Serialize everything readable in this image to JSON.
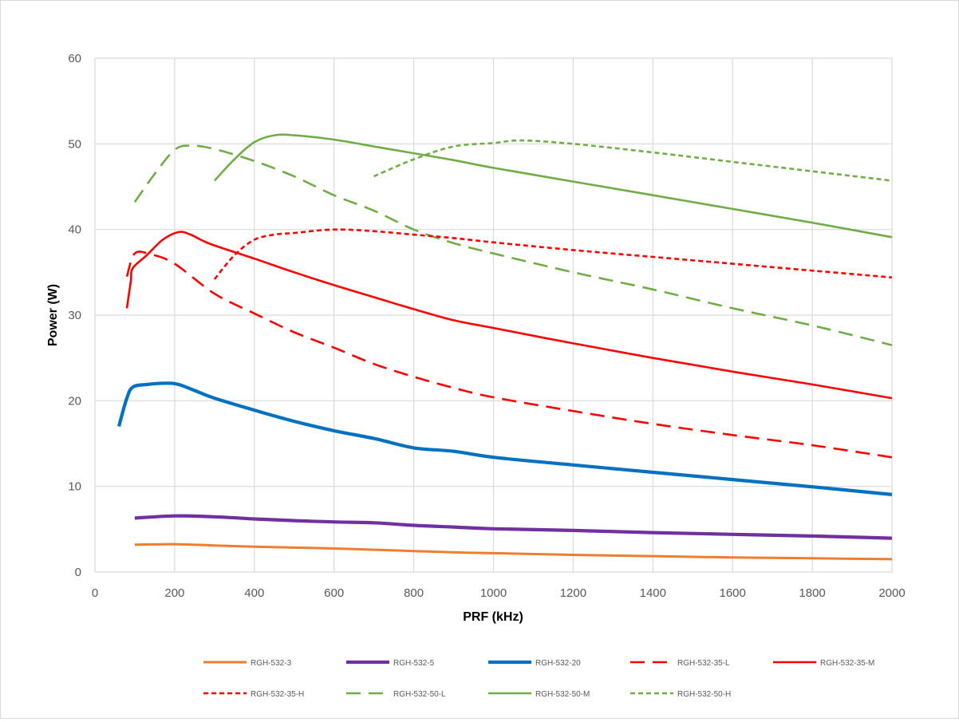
{
  "chart_data": {
    "type": "line",
    "title": "",
    "xlabel": "PRF (kHz)",
    "ylabel": "Power (W)",
    "xlim": [
      0,
      2000
    ],
    "ylim": [
      0,
      60
    ],
    "xticks": [
      0,
      200,
      400,
      600,
      800,
      1000,
      1200,
      1400,
      1600,
      1800,
      2000
    ],
    "yticks": [
      0,
      10,
      20,
      30,
      40,
      50,
      60
    ],
    "grid": "vertical and horizontal",
    "legend_position": "bottom",
    "series": [
      {
        "name": "RGH-532-3",
        "color": "#ED7D31",
        "style": "solid",
        "width": "thin",
        "points": [
          [
            100,
            3.2
          ],
          [
            200,
            3.25
          ],
          [
            300,
            3.1
          ],
          [
            400,
            2.95
          ],
          [
            500,
            2.85
          ],
          [
            600,
            2.75
          ],
          [
            700,
            2.6
          ],
          [
            800,
            2.45
          ],
          [
            900,
            2.3
          ],
          [
            1000,
            2.2
          ],
          [
            1200,
            2.0
          ],
          [
            1400,
            1.85
          ],
          [
            1600,
            1.7
          ],
          [
            1800,
            1.6
          ],
          [
            2000,
            1.5
          ]
        ]
      },
      {
        "name": "RGH-532-5",
        "color": "#7030A0",
        "style": "solid",
        "width": "thick",
        "points": [
          [
            100,
            6.3
          ],
          [
            200,
            6.55
          ],
          [
            300,
            6.45
          ],
          [
            400,
            6.2
          ],
          [
            500,
            6.0
          ],
          [
            600,
            5.85
          ],
          [
            700,
            5.75
          ],
          [
            800,
            5.45
          ],
          [
            900,
            5.25
          ],
          [
            1000,
            5.05
          ],
          [
            1200,
            4.85
          ],
          [
            1400,
            4.6
          ],
          [
            1600,
            4.4
          ],
          [
            1800,
            4.2
          ],
          [
            2000,
            3.95
          ]
        ]
      },
      {
        "name": "RGH-532-20",
        "color": "#0070C0",
        "style": "solid",
        "width": "thick",
        "points": [
          [
            60,
            17
          ],
          [
            80,
            20.3
          ],
          [
            95,
            21.6
          ],
          [
            130,
            21.9
          ],
          [
            180,
            22.05
          ],
          [
            210,
            21.9
          ],
          [
            250,
            21.2
          ],
          [
            300,
            20.3
          ],
          [
            400,
            18.9
          ],
          [
            500,
            17.6
          ],
          [
            600,
            16.5
          ],
          [
            700,
            15.6
          ],
          [
            800,
            14.5
          ],
          [
            900,
            14.1
          ],
          [
            1000,
            13.4
          ],
          [
            1200,
            12.5
          ],
          [
            1400,
            11.65
          ],
          [
            1600,
            10.8
          ],
          [
            1800,
            9.95
          ],
          [
            2000,
            9.05
          ]
        ]
      },
      {
        "name": "RGH-532-35-L",
        "color": "#FF0000",
        "style": "dash-long",
        "width": "medium",
        "points": [
          [
            80,
            34.5
          ],
          [
            100,
            37.2
          ],
          [
            140,
            37.1
          ],
          [
            200,
            36.0
          ],
          [
            300,
            32.5
          ],
          [
            400,
            30.2
          ],
          [
            500,
            28.0
          ],
          [
            600,
            26.2
          ],
          [
            700,
            24.3
          ],
          [
            800,
            22.8
          ],
          [
            900,
            21.5
          ],
          [
            1000,
            20.4
          ],
          [
            1200,
            18.8
          ],
          [
            1400,
            17.3
          ],
          [
            1600,
            16.0
          ],
          [
            1800,
            14.8
          ],
          [
            2000,
            13.4
          ]
        ]
      },
      {
        "name": "RGH-532-35-M",
        "color": "#FF0000",
        "style": "solid",
        "width": "medium",
        "points": [
          [
            80,
            30.8
          ],
          [
            90,
            34.0
          ],
          [
            95,
            35.5
          ],
          [
            130,
            37.0
          ],
          [
            170,
            38.8
          ],
          [
            210,
            39.7
          ],
          [
            240,
            39.4
          ],
          [
            290,
            38.3
          ],
          [
            400,
            36.6
          ],
          [
            500,
            35.0
          ],
          [
            600,
            33.5
          ],
          [
            700,
            32.1
          ],
          [
            800,
            30.7
          ],
          [
            900,
            29.4
          ],
          [
            1000,
            28.5
          ],
          [
            1200,
            26.7
          ],
          [
            1400,
            25.0
          ],
          [
            1600,
            23.4
          ],
          [
            1800,
            21.9
          ],
          [
            2000,
            20.3
          ]
        ]
      },
      {
        "name": "RGH-532-35-H",
        "color": "#FF0000",
        "style": "dotted",
        "width": "medium",
        "points": [
          [
            300,
            34.2
          ],
          [
            350,
            37.0
          ],
          [
            400,
            38.8
          ],
          [
            450,
            39.4
          ],
          [
            500,
            39.6
          ],
          [
            600,
            40.0
          ],
          [
            700,
            39.8
          ],
          [
            800,
            39.4
          ],
          [
            900,
            39.0
          ],
          [
            1000,
            38.5
          ],
          [
            1200,
            37.6
          ],
          [
            1400,
            36.8
          ],
          [
            1600,
            36.0
          ],
          [
            1800,
            35.2
          ],
          [
            2000,
            34.4
          ]
        ]
      },
      {
        "name": "RGH-532-50-L",
        "color": "#70AD47",
        "style": "dash-long",
        "width": "medium",
        "points": [
          [
            100,
            43.2
          ],
          [
            150,
            46.5
          ],
          [
            200,
            49.3
          ],
          [
            240,
            49.8
          ],
          [
            300,
            49.4
          ],
          [
            400,
            48.0
          ],
          [
            500,
            46.2
          ],
          [
            600,
            44.0
          ],
          [
            700,
            42.2
          ],
          [
            800,
            40.0
          ],
          [
            900,
            38.4
          ],
          [
            1000,
            37.2
          ],
          [
            1200,
            35.0
          ],
          [
            1400,
            33.0
          ],
          [
            1600,
            30.8
          ],
          [
            1800,
            28.8
          ],
          [
            2000,
            26.5
          ]
        ]
      },
      {
        "name": "RGH-532-50-M",
        "color": "#70AD47",
        "style": "solid",
        "width": "medium",
        "points": [
          [
            300,
            45.7
          ],
          [
            350,
            48.2
          ],
          [
            400,
            50.2
          ],
          [
            450,
            51.0
          ],
          [
            500,
            51.0
          ],
          [
            600,
            50.5
          ],
          [
            700,
            49.7
          ],
          [
            800,
            48.9
          ],
          [
            900,
            48.1
          ],
          [
            1000,
            47.2
          ],
          [
            1200,
            45.6
          ],
          [
            1400,
            44.0
          ],
          [
            1600,
            42.4
          ],
          [
            1800,
            40.8
          ],
          [
            2000,
            39.1
          ]
        ]
      },
      {
        "name": "RGH-532-50-H",
        "color": "#70AD47",
        "style": "dotted",
        "width": "medium",
        "points": [
          [
            700,
            46.2
          ],
          [
            800,
            48.2
          ],
          [
            900,
            49.7
          ],
          [
            1000,
            50.1
          ],
          [
            1070,
            50.4
          ],
          [
            1200,
            50.0
          ],
          [
            1400,
            49.0
          ],
          [
            1600,
            47.9
          ],
          [
            1800,
            46.8
          ],
          [
            2000,
            45.7
          ]
        ]
      }
    ]
  }
}
